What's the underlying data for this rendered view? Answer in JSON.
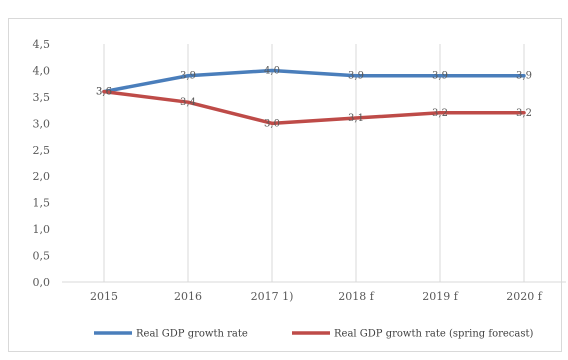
{
  "chart_data": {
    "type": "line",
    "categories": [
      "2015",
      "2016",
      "2017 1)",
      "2018 f",
      "2019 f",
      "2020 f"
    ],
    "series": [
      {
        "name": "Real GDP growth rate",
        "values": [
          3.6,
          3.9,
          4.0,
          3.9,
          3.9,
          3.9
        ],
        "value_labels": [
          "3,6",
          "3,9",
          "4,0",
          "3,9",
          "3,9",
          "3,9"
        ],
        "color": "#4a7ebb"
      },
      {
        "name": "Real GDP growth rate (spring forecast)",
        "values": [
          3.6,
          3.4,
          3.0,
          3.1,
          3.2,
          3.2
        ],
        "value_labels": [
          "3,6",
          "3,4",
          "3,0",
          "3,1",
          "3,2",
          "3,2"
        ],
        "color": "#be4b48"
      }
    ],
    "y_ticks": [
      "0,0",
      "0,5",
      "1,0",
      "1,5",
      "2,0",
      "2,5",
      "3,0",
      "3,5",
      "4,0",
      "4,5"
    ],
    "ylim": [
      0,
      4.5
    ],
    "grid": "vertical",
    "legend": "bottom"
  }
}
